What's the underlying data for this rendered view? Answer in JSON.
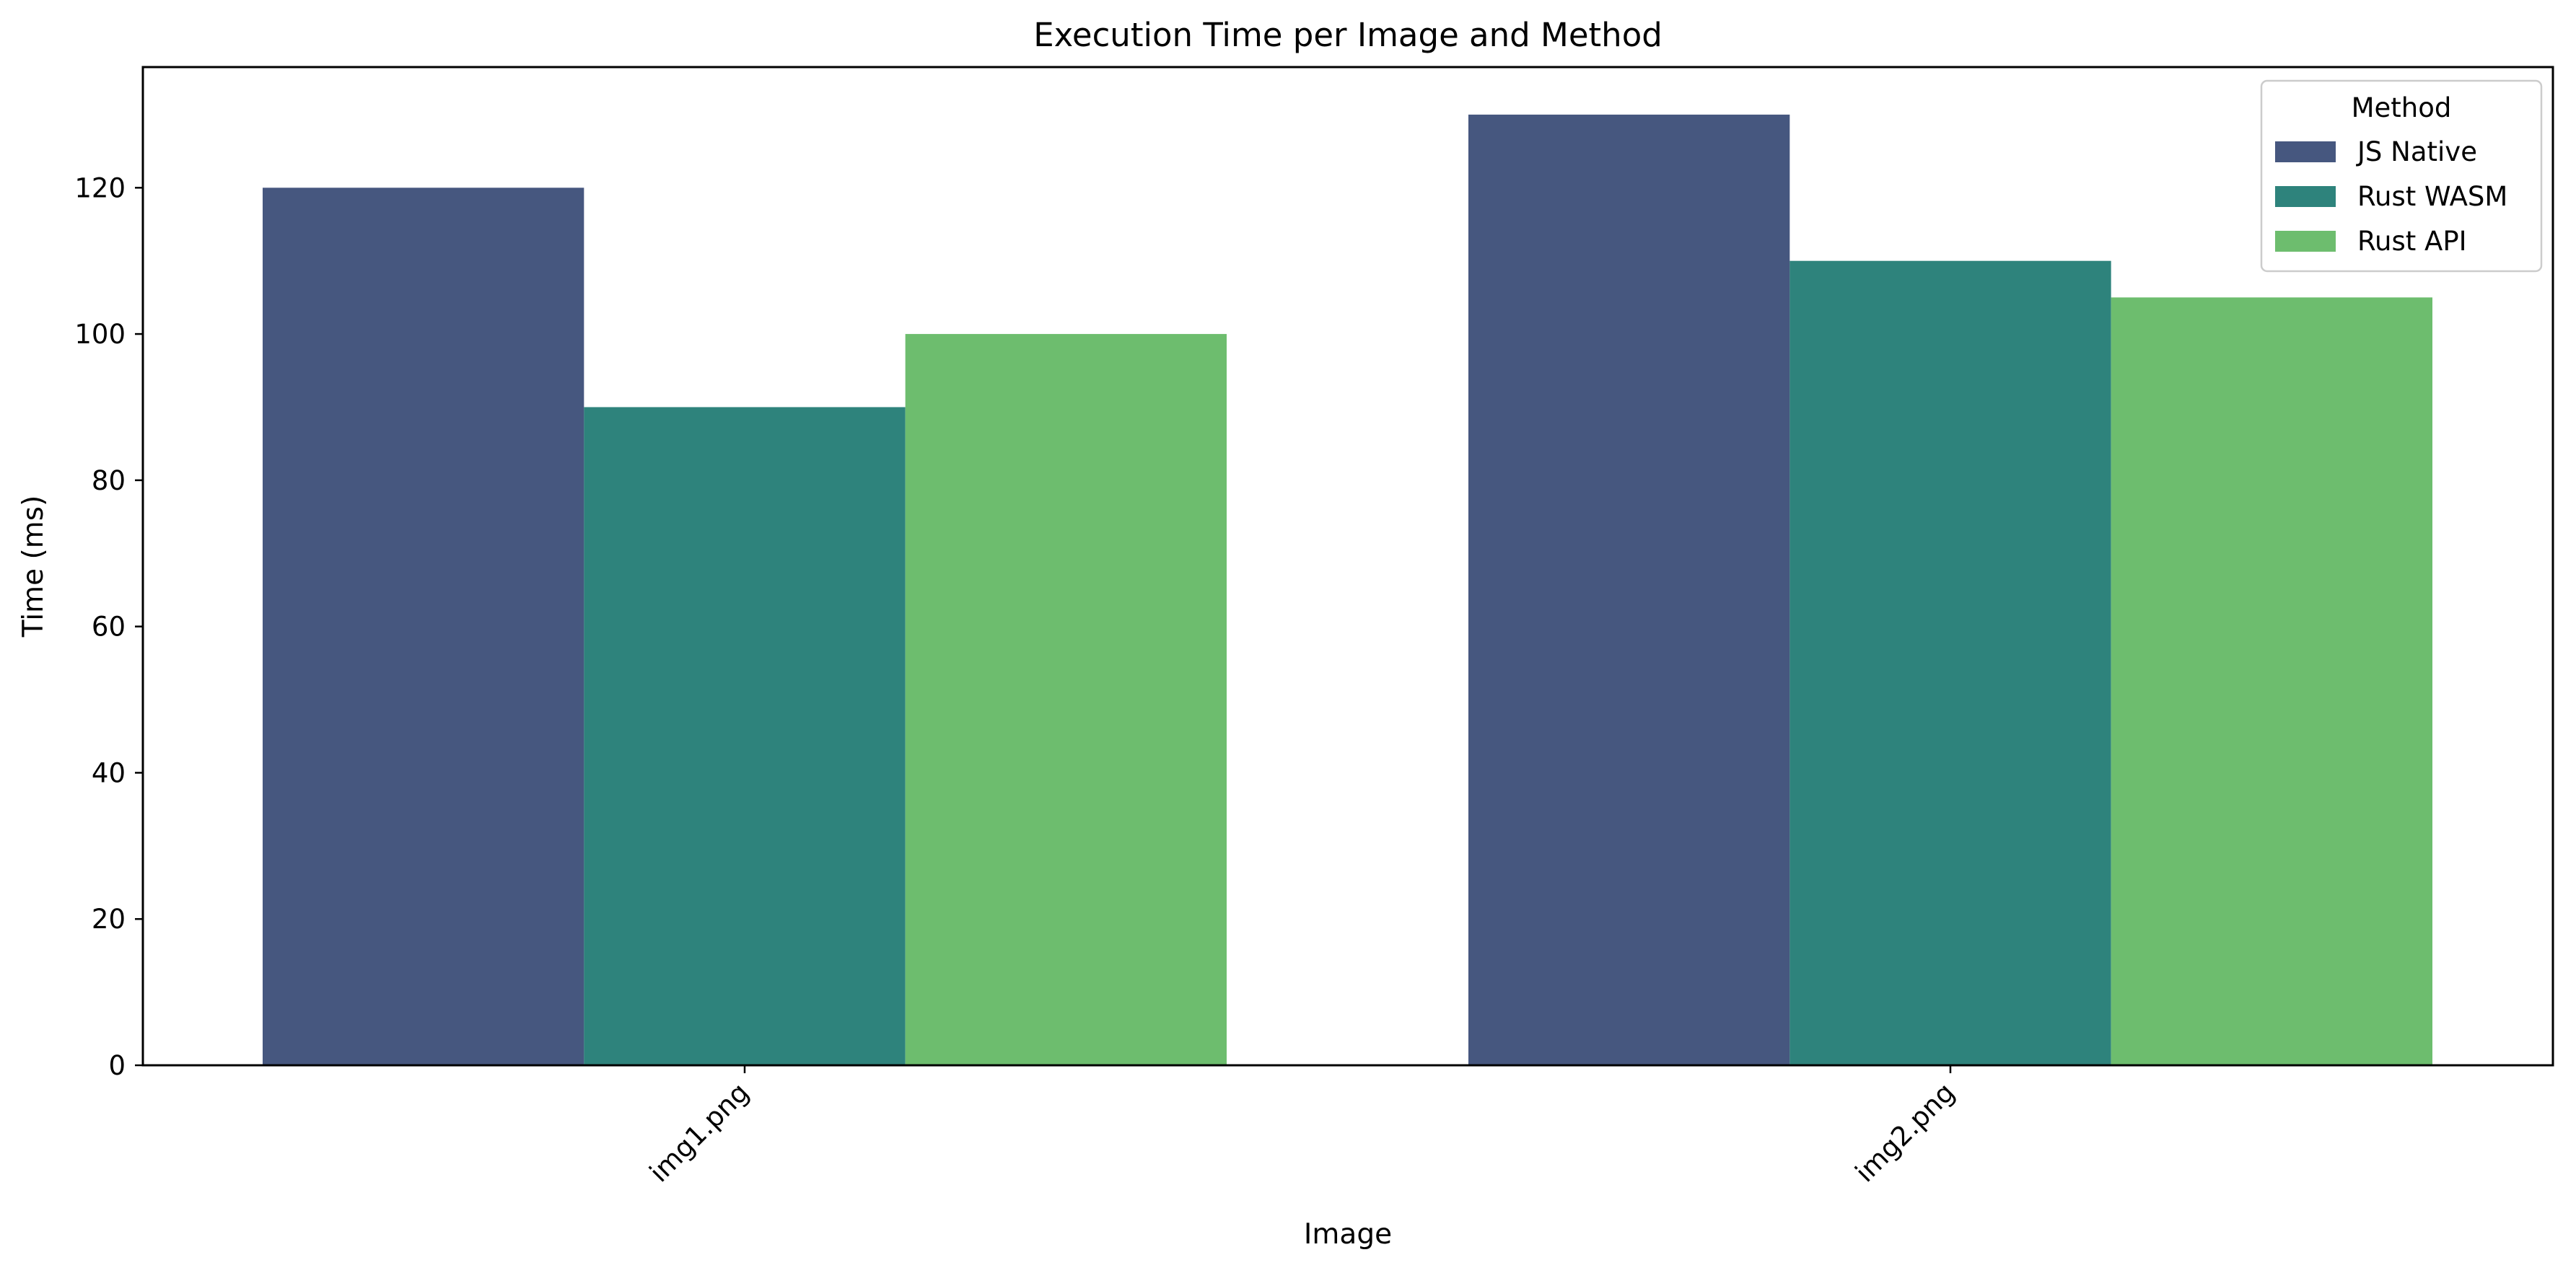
{
  "chart_data": {
    "type": "bar",
    "title": "Execution Time per Image and Method",
    "xlabel": "Image",
    "ylabel": "Time (ms)",
    "categories": [
      "img1.png",
      "img2.png"
    ],
    "series": [
      {
        "name": "JS Native",
        "color": "#46577f",
        "values": [
          120,
          130
        ]
      },
      {
        "name": "Rust WASM",
        "color": "#2e837c",
        "values": [
          90,
          110
        ]
      },
      {
        "name": "Rust API",
        "color": "#6dbd6e",
        "values": [
          100,
          105
        ]
      }
    ],
    "ylim": [
      0,
      136.5
    ],
    "yticks": [
      0,
      20,
      40,
      60,
      80,
      100,
      120
    ],
    "grid": false,
    "legend": {
      "title": "Method",
      "placement": "top-right"
    }
  }
}
